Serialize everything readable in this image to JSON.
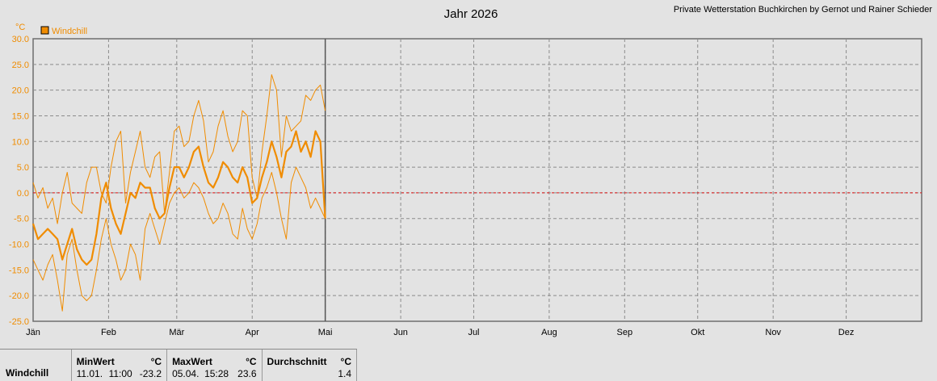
{
  "header": {
    "title": "Jahr 2026",
    "credit": "Private Wetterstation Buchkirchen by Gernot und Rainer Schieder"
  },
  "colors": {
    "series": "#f08c00",
    "background": "#e3e3e3",
    "plot_background": "#e3e3e3",
    "grid": "#8c8c8c",
    "zero_line": "#e01010"
  },
  "chart_data": {
    "type": "line",
    "title": "Jahr 2026",
    "ylabel": "°C",
    "ylim": [
      -25,
      30
    ],
    "yticks": [
      "30.0",
      "25.0",
      "20.0",
      "15.0",
      "10.0",
      "5.0",
      "0.0",
      "-5.0",
      "-10.0",
      "-15.0",
      "-20.0",
      "-25.0"
    ],
    "xlim": [
      0,
      365
    ],
    "xticks": [
      {
        "label": "Jän",
        "day": 0
      },
      {
        "label": "Feb",
        "day": 31
      },
      {
        "label": "Mär",
        "day": 59
      },
      {
        "label": "Apr",
        "day": 90
      },
      {
        "label": "Mai",
        "day": 120
      },
      {
        "label": "Jun",
        "day": 151
      },
      {
        "label": "Jul",
        "day": 181
      },
      {
        "label": "Aug",
        "day": 212
      },
      {
        "label": "Sep",
        "day": 243
      },
      {
        "label": "Okt",
        "day": 273
      },
      {
        "label": "Nov",
        "day": 304
      },
      {
        "label": "Dez",
        "day": 334
      }
    ],
    "current_day": 120,
    "grid": true,
    "legend": {
      "position": "top-left",
      "entries": [
        "Windchill"
      ]
    },
    "x": [
      0,
      2,
      4,
      6,
      8,
      10,
      12,
      14,
      16,
      18,
      20,
      22,
      24,
      26,
      28,
      30,
      32,
      34,
      36,
      38,
      40,
      42,
      44,
      46,
      48,
      50,
      52,
      54,
      56,
      58,
      60,
      62,
      64,
      66,
      68,
      70,
      72,
      74,
      76,
      78,
      80,
      82,
      84,
      86,
      88,
      90,
      92,
      94,
      96,
      98,
      100,
      102,
      104,
      106,
      108,
      110,
      112,
      114,
      116,
      118,
      120
    ],
    "series": [
      {
        "name": "Windchill",
        "role": "daily-max",
        "values": [
          2,
          -1,
          1,
          -3,
          -1,
          -6,
          0,
          4,
          -2,
          -3,
          -4,
          2,
          5,
          5,
          0,
          -2,
          5,
          10,
          12,
          -2,
          4,
          8,
          12,
          5,
          3,
          7,
          8,
          -4,
          4,
          12,
          13,
          9,
          10,
          15,
          18,
          14,
          6,
          8,
          13,
          16,
          11,
          8,
          10,
          16,
          15,
          3,
          -1,
          8,
          15,
          23,
          20,
          7,
          15,
          12,
          13,
          14,
          19,
          18,
          20,
          21,
          16
        ]
      },
      {
        "name": "Windchill",
        "role": "daily-mean",
        "values": [
          -6,
          -9,
          -8,
          -7,
          -8,
          -9,
          -13,
          -10,
          -7,
          -11,
          -13,
          -14,
          -13,
          -8,
          -1,
          2,
          -3,
          -6,
          -8,
          -4,
          0,
          -1,
          2,
          1,
          1,
          -3,
          -5,
          -4,
          1,
          5,
          5,
          3,
          5,
          8,
          9,
          5,
          2,
          1,
          3,
          6,
          5,
          3,
          2,
          5,
          3,
          -2,
          -1,
          3,
          6,
          10,
          7,
          3,
          8,
          9,
          12,
          8,
          10,
          7,
          12,
          10,
          -5
        ]
      },
      {
        "name": "Windchill",
        "role": "daily-min",
        "values": [
          -13,
          -15,
          -17,
          -14,
          -12,
          -17,
          -23,
          -12,
          -9,
          -15,
          -20,
          -21,
          -20,
          -15,
          -9,
          -5,
          -10,
          -13,
          -17,
          -15,
          -10,
          -12,
          -17,
          -7,
          -4,
          -7,
          -10,
          -6,
          -2,
          0,
          1,
          -1,
          0,
          2,
          1,
          -1,
          -4,
          -6,
          -5,
          -2,
          -4,
          -8,
          -9,
          -3,
          -7,
          -9,
          -6,
          -1,
          1,
          4,
          0,
          -5,
          -9,
          2,
          5,
          3,
          1,
          -3,
          -1,
          -3,
          -5
        ]
      }
    ]
  },
  "stats": {
    "row_label": "Windchill",
    "min": {
      "header": "MinWert",
      "unit": "°C",
      "date": "11.01.",
      "time": "11:00",
      "value": "-23.2"
    },
    "max": {
      "header": "MaxWert",
      "unit": "°C",
      "date": "05.04.",
      "time": "15:28",
      "value": "23.6"
    },
    "avg": {
      "header": "Durchschnitt",
      "unit": "°C",
      "value": "1.4"
    }
  }
}
